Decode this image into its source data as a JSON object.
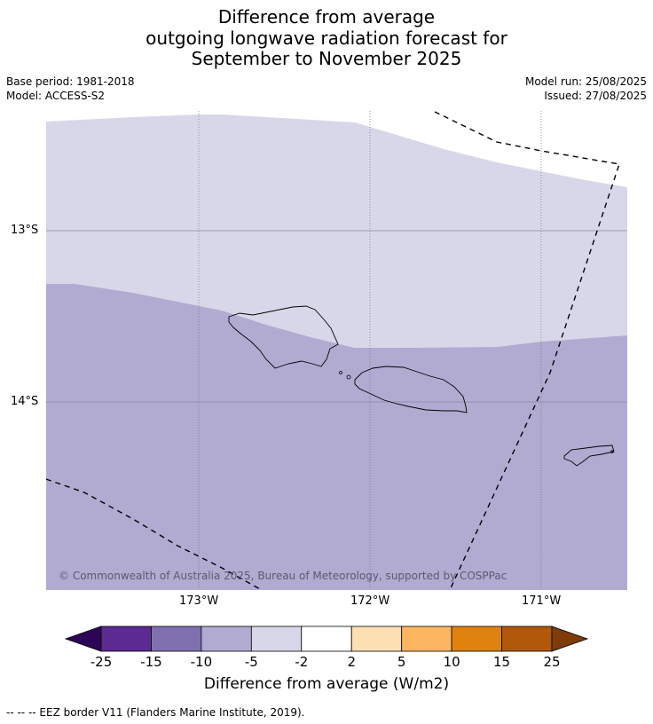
{
  "title": {
    "line1": "Difference from average",
    "line2": "outgoing longwave radiation forecast for",
    "line3": "September to November 2025"
  },
  "meta_left": {
    "base_period": "Base period: 1981-2018",
    "model": "Model: ACCESS-S2"
  },
  "meta_right": {
    "model_run": "Model run: 25/08/2025",
    "issued": "Issued: 27/08/2025"
  },
  "map": {
    "lat_labels": [
      "13°S",
      "14°S"
    ],
    "lon_labels": [
      "173°W",
      "172°W",
      "171°W"
    ],
    "copyright": "© Commonwealth of Australia 2025, Bureau of Meteorology, supported by COSPPac",
    "colors": {
      "upper_band": "#d7d7e9",
      "lower_band": "#b1abd2",
      "coast": "#000000"
    }
  },
  "colorbar": {
    "title": "Difference from average (W/m2)",
    "ticks": [
      "-25",
      "-15",
      "-10",
      "-5",
      "-2",
      "2",
      "5",
      "10",
      "15",
      "25"
    ],
    "colors": [
      "#2e0456",
      "#5c2a90",
      "#8070b0",
      "#b1abd2",
      "#d7d7e9",
      "#ffffff",
      "#fddfb4",
      "#fbb561",
      "#e0820f",
      "#b2580a",
      "#7f3b08"
    ]
  },
  "footnote": "--  --  -- EEZ border V11 (Flanders Marine Institute, 2019)."
}
